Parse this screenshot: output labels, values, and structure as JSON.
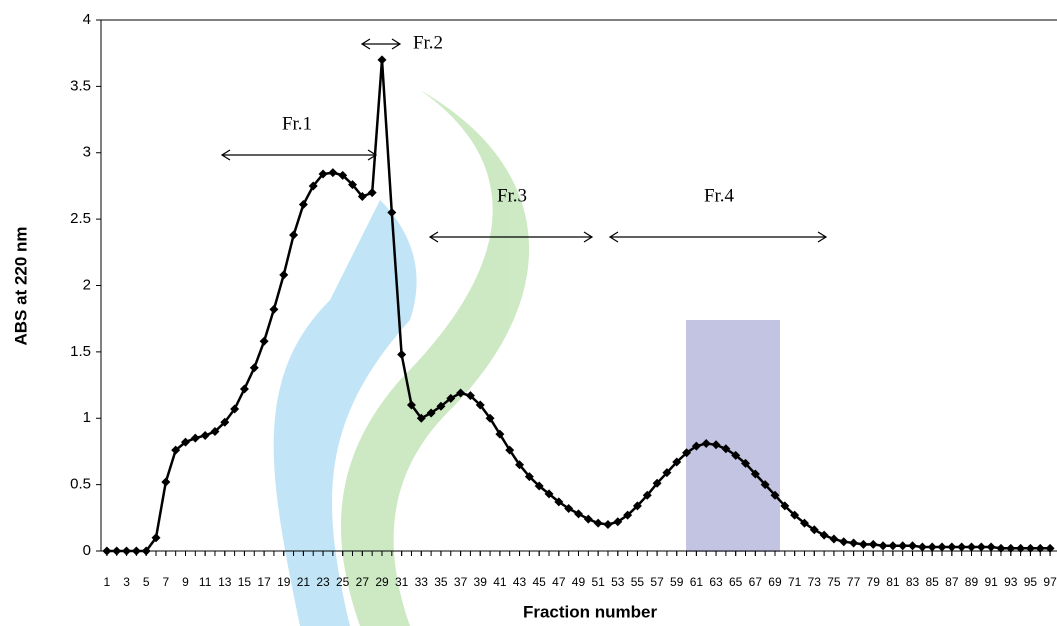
{
  "chart_data": {
    "type": "line",
    "x_label": "Fraction number",
    "y_label": "ABS at 220 nm",
    "color": "#000000",
    "marker": "diamond",
    "x": [
      1,
      2,
      3,
      4,
      5,
      6,
      7,
      8,
      9,
      10,
      11,
      12,
      13,
      14,
      15,
      16,
      17,
      18,
      19,
      20,
      21,
      22,
      23,
      24,
      25,
      26,
      27,
      28,
      29,
      30,
      31,
      32,
      33,
      34,
      35,
      36,
      37,
      38,
      39,
      40,
      41,
      42,
      43,
      44,
      45,
      46,
      47,
      48,
      49,
      50,
      51,
      52,
      53,
      54,
      55,
      56,
      57,
      58,
      59,
      60,
      61,
      62,
      63,
      64,
      65,
      66,
      67,
      68,
      69,
      70,
      71,
      72,
      73,
      74,
      75,
      76,
      77,
      78,
      79,
      80,
      81,
      82,
      83,
      84,
      85,
      86,
      87,
      88,
      89,
      90,
      91,
      92,
      93,
      94,
      95,
      96,
      97
    ],
    "values": [
      0,
      0,
      0,
      0,
      0,
      0.1,
      0.52,
      0.76,
      0.82,
      0.85,
      0.87,
      0.9,
      0.97,
      1.07,
      1.22,
      1.38,
      1.58,
      1.82,
      2.08,
      2.38,
      2.61,
      2.75,
      2.84,
      2.85,
      2.83,
      2.76,
      2.67,
      2.7,
      3.7,
      2.55,
      1.48,
      1.1,
      1.0,
      1.04,
      1.09,
      1.15,
      1.19,
      1.17,
      1.1,
      1.0,
      0.88,
      0.76,
      0.65,
      0.56,
      0.49,
      0.43,
      0.37,
      0.32,
      0.28,
      0.24,
      0.21,
      0.2,
      0.22,
      0.27,
      0.34,
      0.42,
      0.51,
      0.59,
      0.67,
      0.74,
      0.79,
      0.81,
      0.8,
      0.77,
      0.72,
      0.66,
      0.58,
      0.5,
      0.42,
      0.34,
      0.27,
      0.21,
      0.16,
      0.12,
      0.09,
      0.07,
      0.06,
      0.05,
      0.05,
      0.04,
      0.04,
      0.04,
      0.04,
      0.03,
      0.03,
      0.03,
      0.03,
      0.03,
      0.03,
      0.03,
      0.03,
      0.02,
      0.02,
      0.02,
      0.02,
      0.02,
      0.02
    ],
    "xlim": [
      0.4,
      97.5
    ],
    "xticks": [
      1,
      3,
      5,
      7,
      9,
      11,
      13,
      15,
      17,
      19,
      21,
      23,
      25,
      27,
      29,
      31,
      33,
      35,
      37,
      39,
      41,
      43,
      45,
      47,
      49,
      51,
      53,
      55,
      57,
      59,
      61,
      63,
      65,
      67,
      69,
      71,
      73,
      75,
      77,
      79,
      81,
      83,
      85,
      87,
      89,
      91,
      93,
      95,
      97
    ],
    "ylim": [
      0,
      4
    ],
    "yticks": [
      0,
      0.5,
      1,
      1.5,
      2,
      2.5,
      3,
      3.5,
      4
    ],
    "annotations": [
      "Fr.1",
      "Fr.2",
      "Fr.3",
      "Fr.4"
    ]
  }
}
